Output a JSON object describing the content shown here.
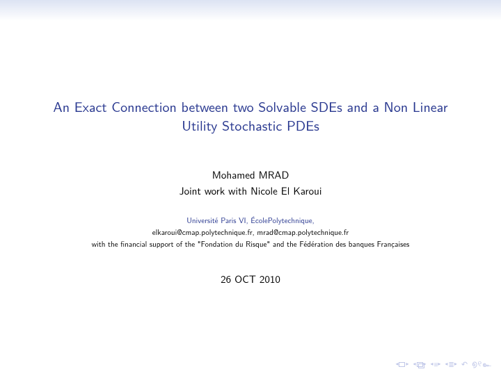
{
  "colors": {
    "structure": "#2a3990",
    "text": "#000000",
    "nav": "#b8bfe3",
    "background": "#ffffff",
    "gradient_top": "#dce3f3"
  },
  "title": "An Exact Connection between two Solvable SDEs and a Non Linear Utility Stochastic PDEs",
  "author": {
    "name": "Mohamed MRAD",
    "joint": "Joint work with Nicole El Karoui"
  },
  "institute": {
    "line1": "Université Paris VI, ÉcolePolytechnique,",
    "emails": "elkaroui@cmap.polytechnique.fr,   mrad@cmap.polytechnique.fr",
    "support": "with the financial support of the \"Fondation du Risque\" and the Fédération des banques Françaises"
  },
  "date": "26 OCT 2010",
  "nav": {
    "first_slide": "first-slide",
    "prev_slide": "prev-slide",
    "next_slide": "next-slide",
    "last_slide": "last-slide",
    "back": "back",
    "search": "search"
  }
}
